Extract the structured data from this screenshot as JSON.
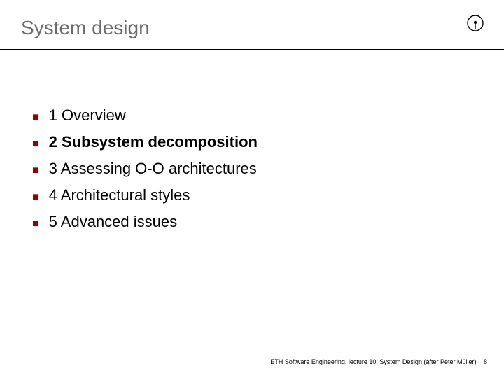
{
  "title": {
    "text": "System design",
    "color": "#6b6b6b",
    "fontsize": 28
  },
  "bullet_color": "#9a0000",
  "items": [
    {
      "text": "1  Overview",
      "bold": false
    },
    {
      "text": "2  Subsystem decomposition",
      "bold": true
    },
    {
      "text": "3  Assessing O-O architectures",
      "bold": false
    },
    {
      "text": "4  Architectural styles",
      "bold": false
    },
    {
      "text": "5  Advanced issues",
      "bold": false
    }
  ],
  "footer": {
    "text": "ETH Software Engineering, lecture 10: System Design (after Peter Müller)",
    "page": "8"
  },
  "logo": {
    "outer_stroke": "#000000",
    "inner_fill": "#000000"
  }
}
